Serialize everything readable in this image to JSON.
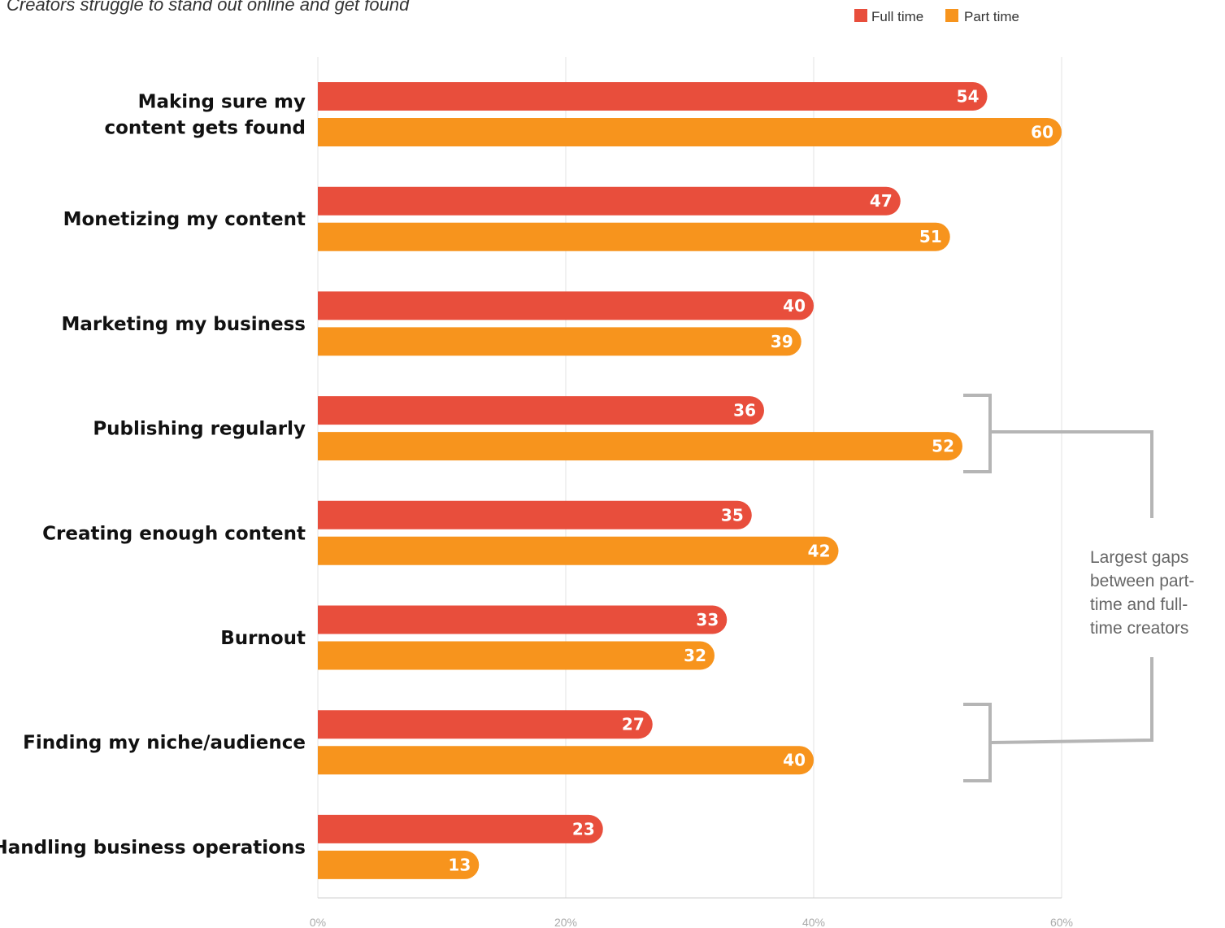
{
  "chart_data": {
    "type": "bar",
    "orientation": "horizontal",
    "subtitle": "Creators struggle to stand out online and get found",
    "categories": [
      "Making sure my content gets found",
      "Monetizing my content",
      "Marketing my business",
      "Publishing regularly",
      "Creating enough content",
      "Burnout",
      "Finding my niche/audience",
      "Handling business operations"
    ],
    "category_lines": [
      [
        "Making sure my",
        "content gets found"
      ],
      [
        "Monetizing my content"
      ],
      [
        "Marketing my business"
      ],
      [
        "Publishing regularly"
      ],
      [
        "Creating enough content"
      ],
      [
        "Burnout"
      ],
      [
        "Finding my niche/audience"
      ],
      [
        "Handling business operations"
      ]
    ],
    "series": [
      {
        "name": "Full time",
        "color": "#e84e3c",
        "values": [
          54,
          47,
          40,
          36,
          35,
          33,
          27,
          23
        ]
      },
      {
        "name": "Part time",
        "color": "#f7941d",
        "values": [
          60,
          51,
          39,
          52,
          42,
          32,
          40,
          13
        ]
      }
    ],
    "xlim": [
      0,
      60
    ],
    "xticks": [
      0,
      20,
      40,
      60
    ],
    "xtick_labels": [
      "0%",
      "20%",
      "40%",
      "60%"
    ],
    "grid": true,
    "legend": "top-right",
    "annotation": {
      "lines": [
        "Largest gaps",
        "between part-",
        "time and full-",
        "time creators"
      ],
      "targets": [
        "Publishing regularly",
        "Finding my niche/audience"
      ],
      "bracket_color": "#b5b5b5"
    }
  }
}
